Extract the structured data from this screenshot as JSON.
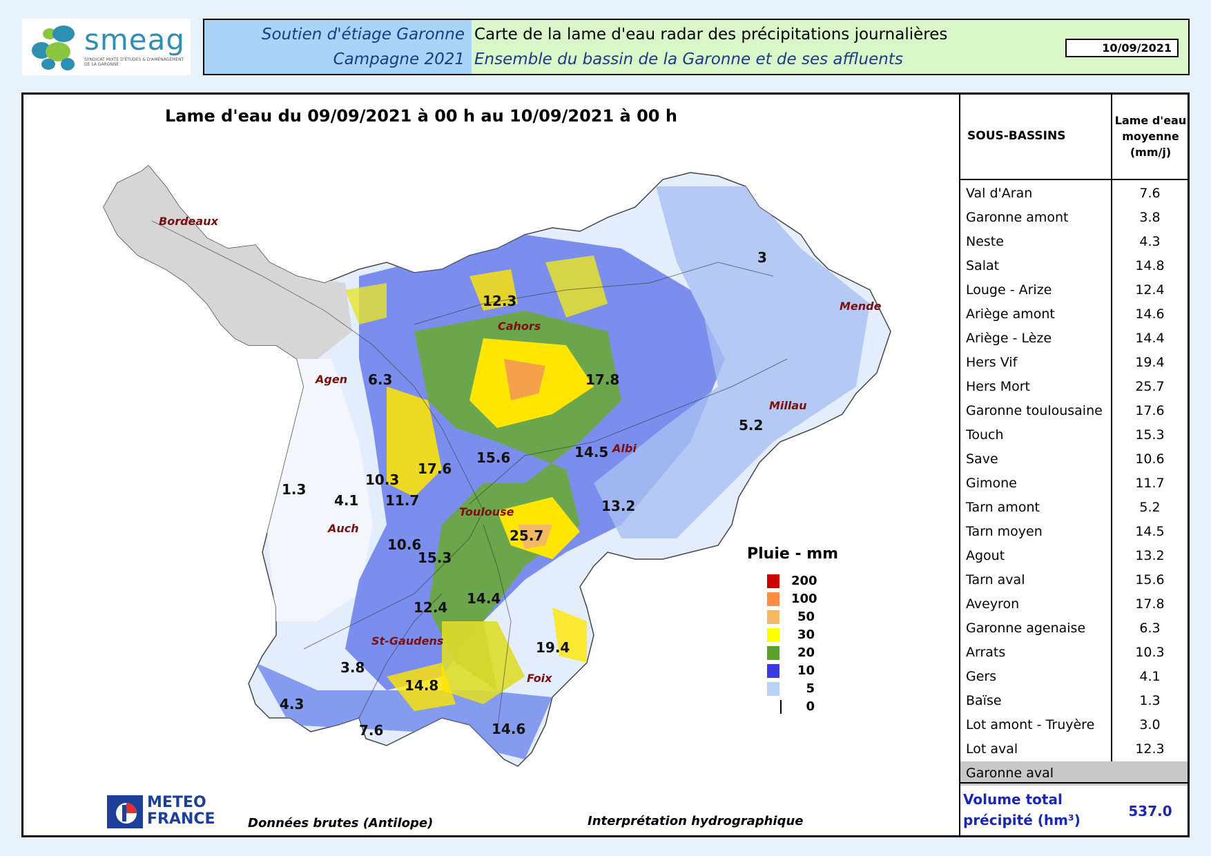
{
  "header": {
    "logo_text": "smeag",
    "logo_subtitle": "SYNDICAT MIXTE D'ÉTUDES & D'AMÉNAGEMENT DE LA GARONNE",
    "left_line1": "Soutien d'étiage Garonne",
    "left_line2": "Campagne 2021",
    "right_line1": "Carte de la lame d'eau radar des précipitations journalières",
    "right_line2": "Ensemble du bassin de la Garonne et de ses affluents",
    "date": "10/09/2021"
  },
  "map": {
    "title": "Lame d'eau du 09/09/2021 à 00 h au 10/09/2021 à 00 h",
    "cities": [
      "Bordeaux",
      "Agen",
      "Cahors",
      "Mende",
      "Millau",
      "Albi",
      "Toulouse",
      "Auch",
      "St-Gaudens",
      "Foix"
    ],
    "values": [
      "3",
      "12.3",
      "6.3",
      "17.8",
      "5.2",
      "14.5",
      "15.6",
      "17.6",
      "10.3",
      "11.7",
      "1.3",
      "4.1",
      "13.2",
      "25.7",
      "10.6",
      "15.3",
      "14.4",
      "12.4",
      "19.4",
      "3.8",
      "14.8",
      "4.3",
      "7.6",
      "14.6"
    ],
    "legend_title": "Pluie - mm",
    "legend": [
      {
        "label": "200",
        "color": "#cc0000"
      },
      {
        "label": "100",
        "color": "#ff8c40"
      },
      {
        "label": "50",
        "color": "#f5b862"
      },
      {
        "label": "30",
        "color": "#ffff00"
      },
      {
        "label": "20",
        "color": "#5aa02c"
      },
      {
        "label": "10",
        "color": "#3a3ae0"
      },
      {
        "label": "5",
        "color": "#b8d2f6"
      },
      {
        "label": "0",
        "color": "#ffffff"
      }
    ],
    "footer_left": "Données brutes (Antilope)",
    "footer_right": "Interprétation hydrographique",
    "meteo_logo_line1": "METEO",
    "meteo_logo_line2": "FRANCE"
  },
  "table": {
    "col1": "SOUS-BASSINS",
    "col2_line1": "Lame d'eau",
    "col2_line2": "moyenne",
    "col2_line3": "(mm/j)",
    "rows": [
      {
        "name": "Val d'Aran",
        "value": "7.6"
      },
      {
        "name": "Garonne amont",
        "value": "3.8"
      },
      {
        "name": "Neste",
        "value": "4.3"
      },
      {
        "name": "Salat",
        "value": "14.8"
      },
      {
        "name": "Louge - Arize",
        "value": "12.4"
      },
      {
        "name": "Ariège amont",
        "value": "14.6"
      },
      {
        "name": "Ariège - Lèze",
        "value": "14.4"
      },
      {
        "name": "Hers Vif",
        "value": "19.4"
      },
      {
        "name": "Hers Mort",
        "value": "25.7"
      },
      {
        "name": "Garonne toulousaine",
        "value": "17.6"
      },
      {
        "name": "Touch",
        "value": "15.3"
      },
      {
        "name": "Save",
        "value": "10.6"
      },
      {
        "name": "Gimone",
        "value": "11.7"
      },
      {
        "name": "Tarn amont",
        "value": "5.2"
      },
      {
        "name": "Tarn moyen",
        "value": "14.5"
      },
      {
        "name": "Agout",
        "value": "13.2"
      },
      {
        "name": "Tarn aval",
        "value": "15.6"
      },
      {
        "name": "Aveyron",
        "value": "17.8"
      },
      {
        "name": "Garonne agenaise",
        "value": "6.3"
      },
      {
        "name": "Arrats",
        "value": "10.3"
      },
      {
        "name": "Gers",
        "value": "4.1"
      },
      {
        "name": "Baïse",
        "value": "1.3"
      },
      {
        "name": "Lot amont - Truyère",
        "value": "3.0"
      },
      {
        "name": "Lot aval",
        "value": "12.3"
      },
      {
        "name": "Garonne aval",
        "value": ""
      }
    ],
    "volume_label_line1": "Volume total",
    "volume_label_line2": "précipité (hm³)",
    "volume_value": "537.0"
  }
}
